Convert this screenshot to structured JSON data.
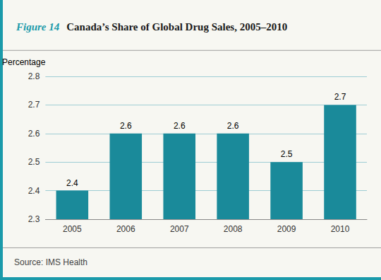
{
  "chart_data": {
    "type": "bar",
    "title": "Canada’s Share of Global Drug Sales, 2005–2010",
    "annotations": [
      "Figure 14",
      "Source: IMS Health"
    ],
    "ylabel": "Percentage",
    "categories": [
      "2005",
      "2006",
      "2007",
      "2008",
      "2009",
      "2010"
    ],
    "values": [
      2.4,
      2.6,
      2.6,
      2.6,
      2.5,
      2.7
    ],
    "color": "#1a8a9a",
    "ylim": [
      2.3,
      2.8
    ],
    "yticks": [
      2.3,
      2.4,
      2.5,
      2.6,
      2.7,
      2.8
    ],
    "grid": true,
    "data_labels": true
  }
}
